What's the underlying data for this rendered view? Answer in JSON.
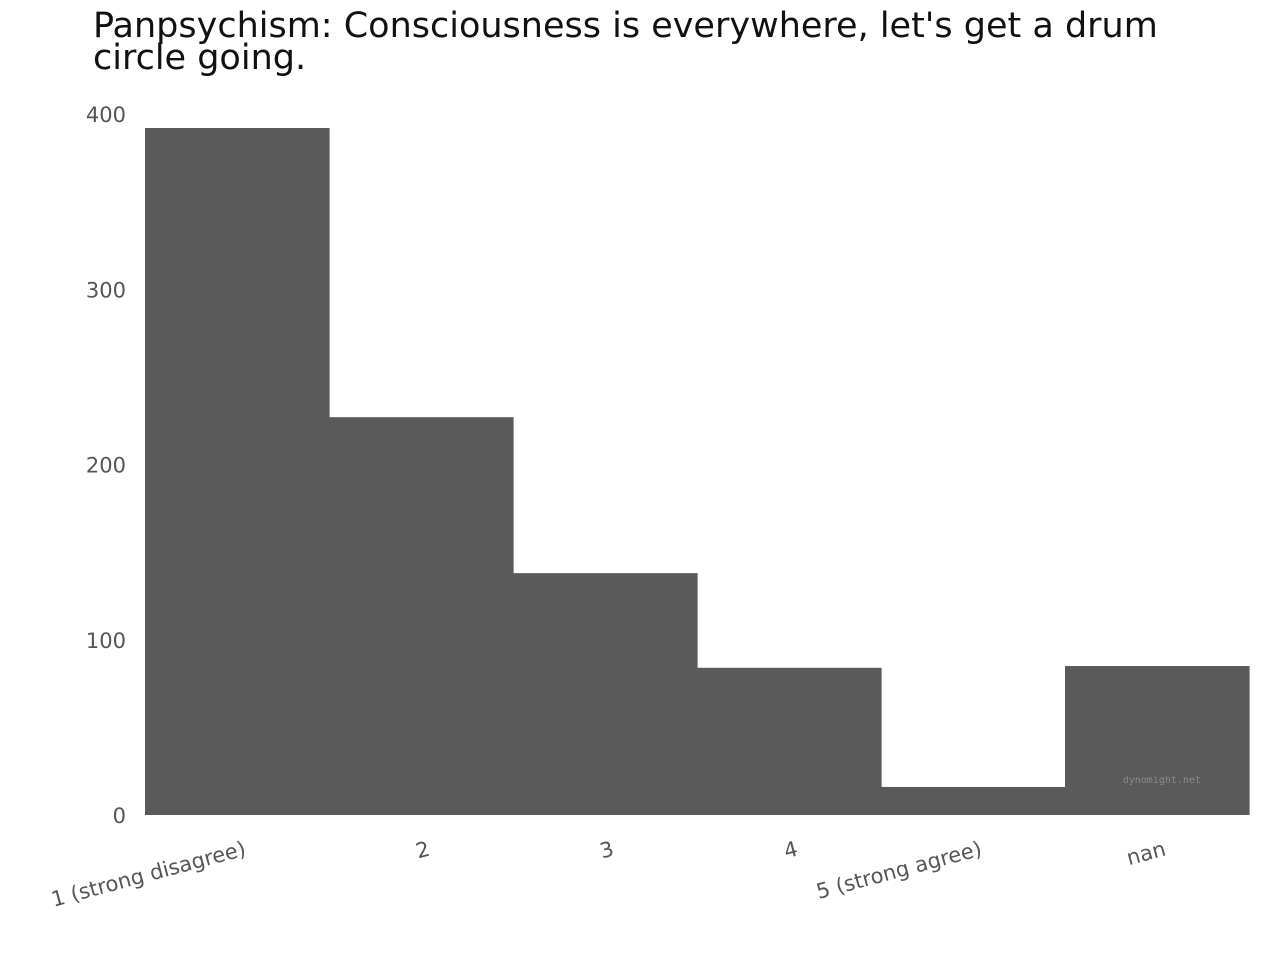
{
  "chart_data": {
    "type": "bar",
    "title": "Panpsychism: Consciousness is everywhere, let's get a drum circle going.",
    "xlabel": "",
    "ylabel": "",
    "categories": [
      "1 (strong disagree)",
      "2",
      "3",
      "4",
      "5 (strong agree)",
      "nan"
    ],
    "values": [
      392,
      227,
      138,
      84,
      16,
      85
    ],
    "ylim": [
      0,
      400
    ],
    "yticks": [
      0,
      100,
      200,
      300,
      400
    ],
    "grid": false,
    "legend": "none",
    "bar_color": "#5a5a5a",
    "watermark": "dynomight.net",
    "watermark_color": "#8a8a8a"
  }
}
